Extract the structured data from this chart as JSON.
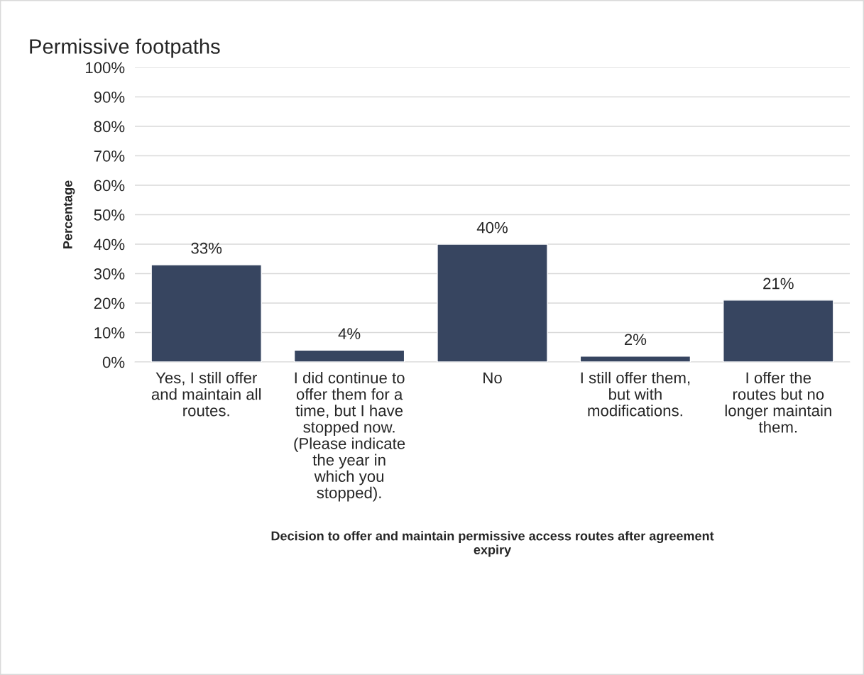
{
  "chart_data": {
    "type": "bar",
    "title": "Permissive footpaths",
    "xlabel": "Decision to offer and maintain permissive access routes after agreement expiry",
    "ylabel": "Percentage",
    "categories": [
      "Yes, I still offer and maintain all routes.",
      "I did continue to offer them for a time, but I have stopped now. (Please indicate the year in which you stopped).",
      "No",
      "I still offer them, but with modifications.",
      "I offer the routes but no longer maintain them."
    ],
    "values": [
      33,
      4,
      40,
      2,
      21
    ],
    "value_labels": [
      "33%",
      "4%",
      "40%",
      "2%",
      "21%"
    ],
    "color": "#374560",
    "ylim": [
      0,
      100
    ],
    "yticks": [
      {
        "value": 0,
        "label": "0%"
      },
      {
        "value": 10,
        "label": "10%"
      },
      {
        "value": 20,
        "label": "20%"
      },
      {
        "value": 30,
        "label": "30%"
      },
      {
        "value": 40,
        "label": "40%"
      },
      {
        "value": 50,
        "label": "50%"
      },
      {
        "value": 60,
        "label": "60%"
      },
      {
        "value": 70,
        "label": "70%"
      },
      {
        "value": 80,
        "label": "80%"
      },
      {
        "value": 90,
        "label": "90%"
      },
      {
        "value": 100,
        "label": "100%"
      }
    ],
    "grid": "y",
    "legend": false
  }
}
